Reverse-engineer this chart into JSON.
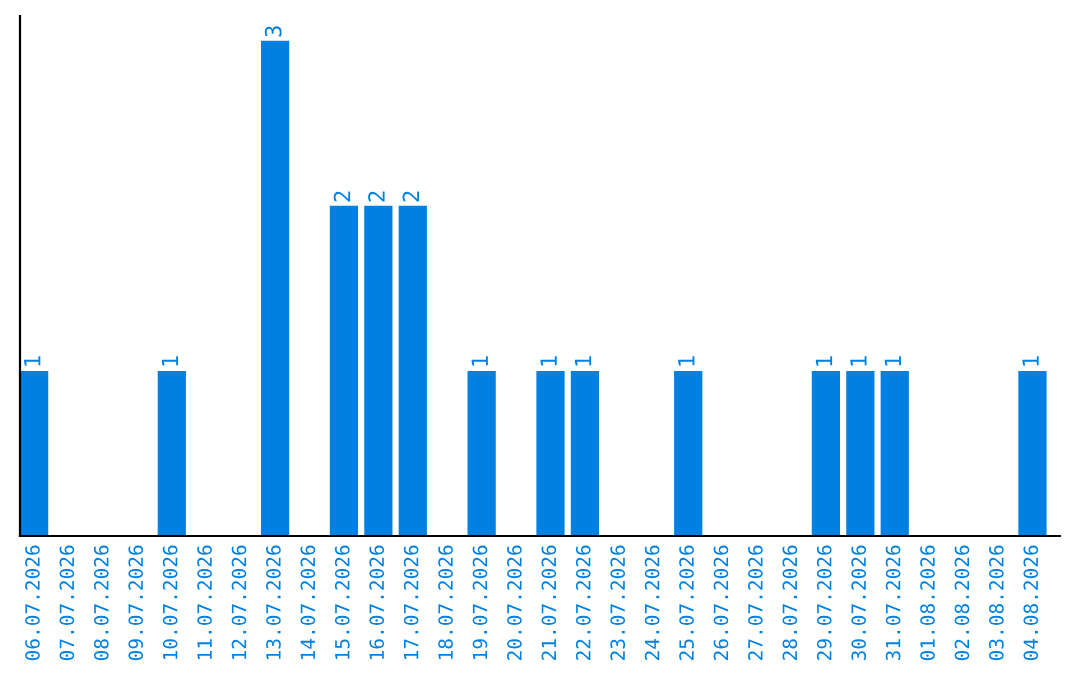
{
  "chart_data": {
    "type": "bar",
    "categories": [
      "06.07.2026",
      "07.07.2026",
      "08.07.2026",
      "09.07.2026",
      "10.07.2026",
      "11.07.2026",
      "12.07.2026",
      "13.07.2026",
      "14.07.2026",
      "15.07.2026",
      "16.07.2026",
      "17.07.2026",
      "18.07.2026",
      "19.07.2026",
      "20.07.2026",
      "21.07.2026",
      "22.07.2026",
      "23.07.2026",
      "24.07.2026",
      "25.07.2026",
      "26.07.2026",
      "27.07.2026",
      "28.07.2026",
      "29.07.2026",
      "30.07.2026",
      "31.07.2026",
      "01.08.2026",
      "02.08.2026",
      "03.08.2026",
      "04.08.2026"
    ],
    "values": [
      1,
      0,
      0,
      0,
      1,
      0,
      0,
      3,
      0,
      2,
      2,
      2,
      0,
      1,
      0,
      1,
      1,
      0,
      0,
      1,
      0,
      0,
      0,
      1,
      1,
      1,
      0,
      0,
      0,
      1
    ],
    "value_labels": [
      "1",
      null,
      null,
      null,
      "1",
      null,
      null,
      "3",
      null,
      "2",
      "2",
      "2",
      null,
      "1",
      null,
      "1",
      "1",
      null,
      null,
      "1",
      null,
      null,
      null,
      "1",
      "1",
      "1",
      null,
      null,
      null,
      "1"
    ],
    "color": "#0080e0",
    "ylim": [
      0,
      3.15
    ],
    "tick_labels": "x",
    "grid": false
  }
}
